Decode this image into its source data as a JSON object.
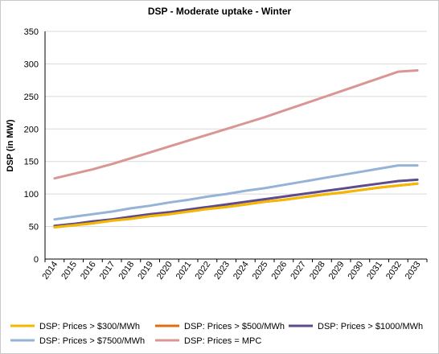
{
  "chart_data": {
    "type": "line",
    "title": "DSP - Moderate uptake - Winter",
    "xlabel": "",
    "ylabel": "DSP (in MW)",
    "ylim": [
      0,
      350
    ],
    "yticks": [
      0,
      50,
      100,
      150,
      200,
      250,
      300,
      350
    ],
    "grid": true,
    "legend_position": "bottom",
    "categories": [
      "2014",
      "2015",
      "2016",
      "2017",
      "2018",
      "2019",
      "2020",
      "2021",
      "2022",
      "2023",
      "2024",
      "2025",
      "2026",
      "2027",
      "2028",
      "2029",
      "2030",
      "2031",
      "2032",
      "2033"
    ],
    "series": [
      {
        "name": "DSP: Prices > $300/MWh",
        "color": "#f5b800",
        "values": [
          49,
          52,
          55,
          59,
          62,
          66,
          69,
          73,
          77,
          80,
          84,
          88,
          91,
          95,
          99,
          102,
          106,
          110,
          113,
          116
        ]
      },
      {
        "name": "DSP: Prices > $500/MWh",
        "color": "#e46c0a",
        "values": [
          49,
          52,
          55,
          59,
          62,
          66,
          69,
          73,
          77,
          80,
          84,
          88,
          91,
          95,
          99,
          102,
          106,
          110,
          113,
          116
        ]
      },
      {
        "name": "DSP: Prices > $1000/MWh",
        "color": "#5f4a8b",
        "values": [
          51,
          54,
          58,
          61,
          65,
          69,
          72,
          76,
          80,
          84,
          88,
          92,
          96,
          100,
          104,
          108,
          112,
          116,
          120,
          122
        ]
      },
      {
        "name": "DSP: Prices > $7500/MWh",
        "color": "#95b3d7",
        "values": [
          61,
          65,
          69,
          73,
          78,
          82,
          87,
          91,
          96,
          100,
          105,
          109,
          114,
          119,
          124,
          129,
          134,
          139,
          144,
          144
        ]
      },
      {
        "name": "DSP: Prices = MPC",
        "color": "#d99694",
        "values": [
          124,
          131,
          138,
          146,
          155,
          164,
          173,
          182,
          191,
          200,
          209,
          218,
          228,
          238,
          248,
          258,
          268,
          278,
          288,
          290
        ]
      }
    ]
  }
}
